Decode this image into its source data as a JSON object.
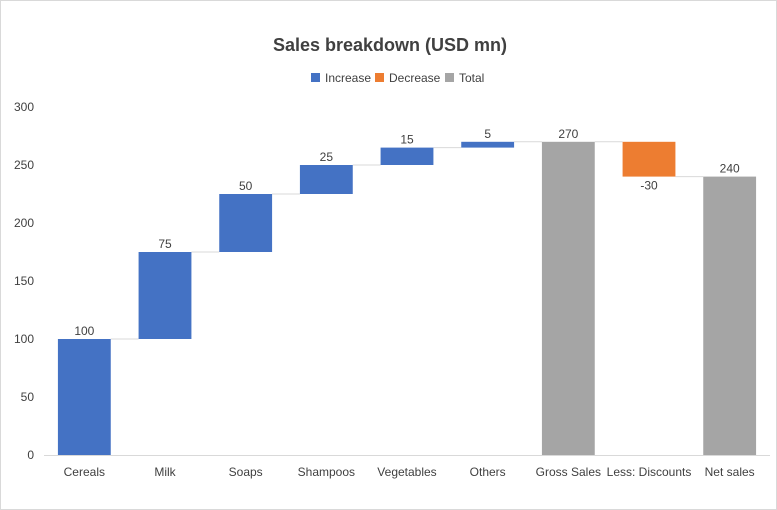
{
  "chart_data": {
    "type": "bar",
    "subtype": "waterfall",
    "title": "Sales breakdown (USD mn)",
    "categories": [
      "Cereals",
      "Milk",
      "Soaps",
      "Shampoos",
      "Vegetables",
      "Others",
      "Gross Sales",
      "Less: Discounts",
      "Net sales"
    ],
    "values": [
      100,
      75,
      50,
      25,
      15,
      5,
      270,
      -30,
      240
    ],
    "data_labels": [
      "100",
      "75",
      "50",
      "25",
      "15",
      "5",
      "270",
      "-30",
      "240"
    ],
    "kinds": [
      "increase",
      "increase",
      "increase",
      "increase",
      "increase",
      "increase",
      "total",
      "decrease",
      "total"
    ],
    "legend": [
      {
        "key": "increase",
        "name": "Increase",
        "color": "#4472C4"
      },
      {
        "key": "decrease",
        "name": "Decrease",
        "color": "#ED7D31"
      },
      {
        "key": "total",
        "name": "Total",
        "color": "#A5A5A5"
      }
    ],
    "legend_position": "top",
    "ylim": [
      0,
      300
    ],
    "yticks": [
      0,
      50,
      100,
      150,
      200,
      250,
      300
    ],
    "connector_lines": true,
    "grid": false
  }
}
